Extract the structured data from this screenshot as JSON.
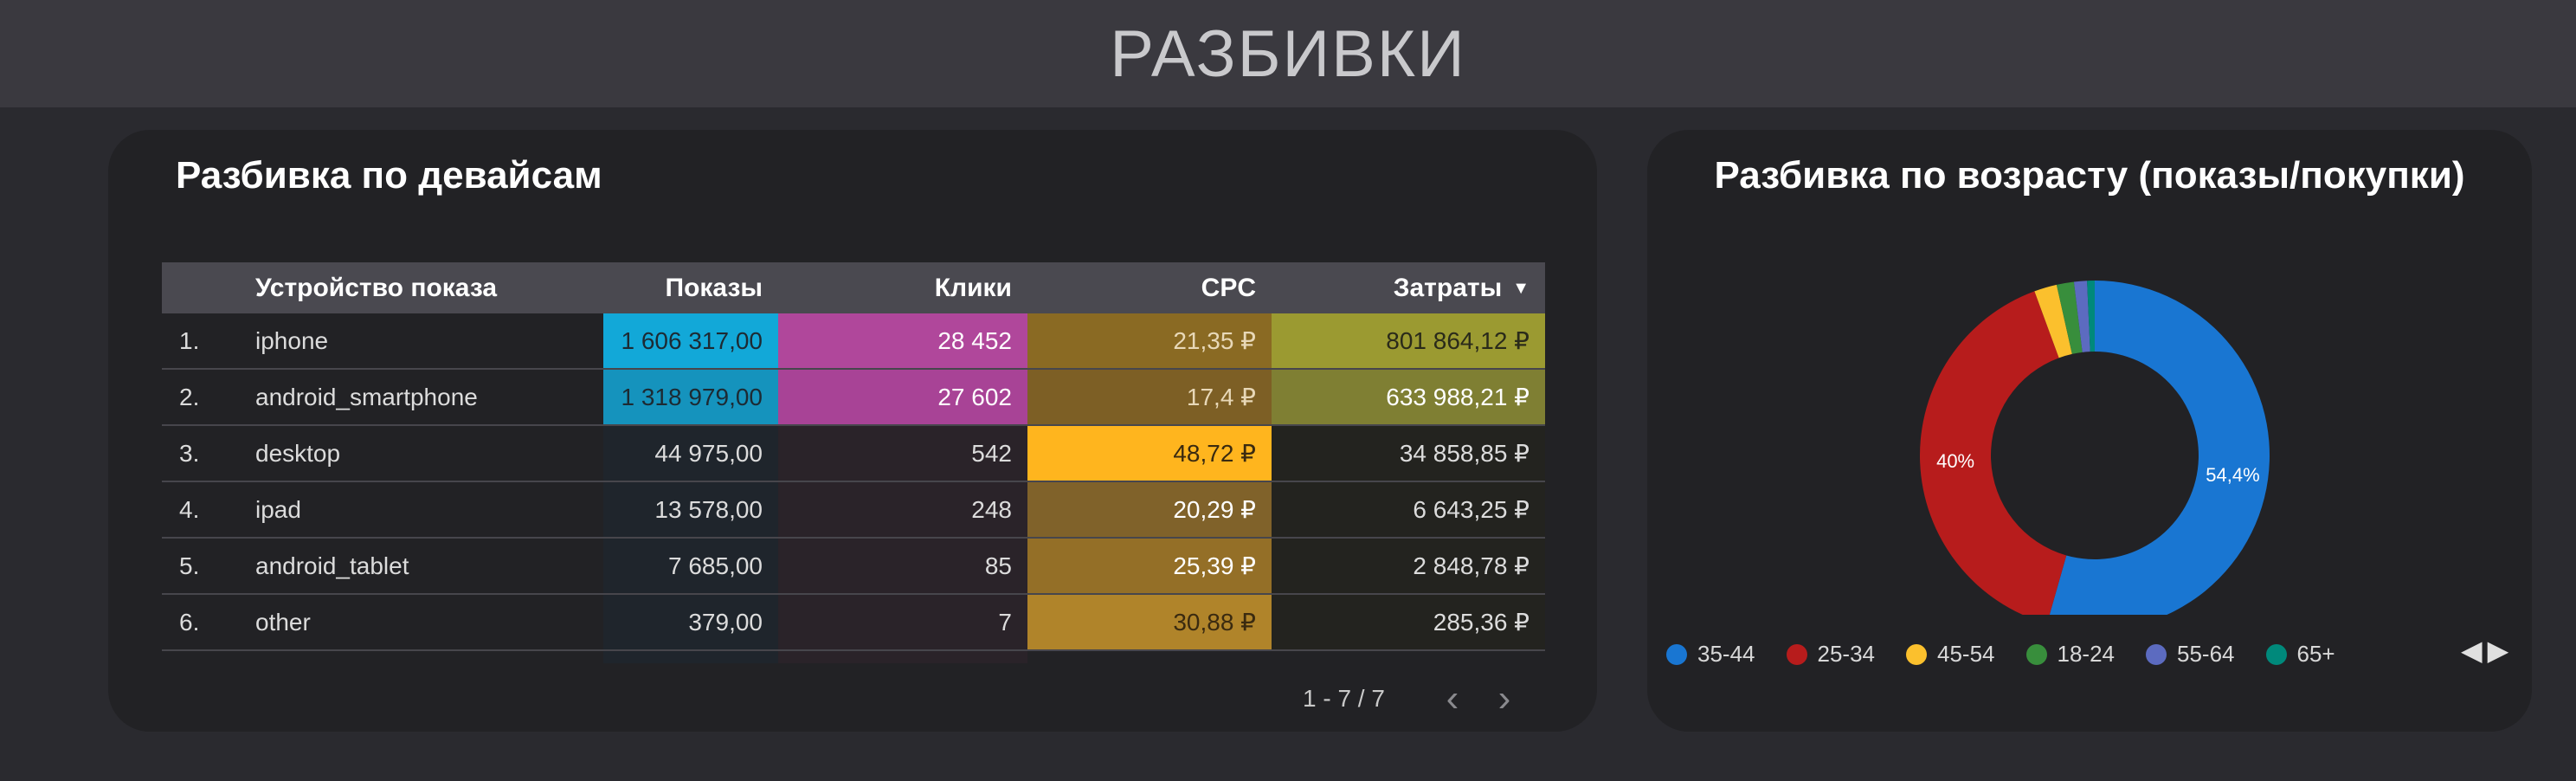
{
  "page": {
    "title": "РАЗБИВКИ"
  },
  "devices": {
    "title": "Разбивка по девайсам",
    "columns": {
      "device": "Устройство показа",
      "impressions": "Показы",
      "clicks": "Клики",
      "cpc": "CPC",
      "cost": "Затраты"
    },
    "rows": [
      {
        "idx": "1.",
        "device": "iphone",
        "impressions": "1 606 317,00",
        "clicks": "28 452",
        "cpc": "21,35 ₽",
        "cost": "801 864,12 ₽"
      },
      {
        "idx": "2.",
        "device": "android_smartphone",
        "impressions": "1 318 979,00",
        "clicks": "27 602",
        "cpc": "17,4 ₽",
        "cost": "633 988,21 ₽"
      },
      {
        "idx": "3.",
        "device": "desktop",
        "impressions": "44 975,00",
        "clicks": "542",
        "cpc": "48,72 ₽",
        "cost": "34 858,85 ₽"
      },
      {
        "idx": "4.",
        "device": "ipad",
        "impressions": "13 578,00",
        "clicks": "248",
        "cpc": "20,29 ₽",
        "cost": "6 643,25 ₽"
      },
      {
        "idx": "5.",
        "device": "android_tablet",
        "impressions": "7 685,00",
        "clicks": "85",
        "cpc": "25,39 ₽",
        "cost": "2 848,78 ₽"
      },
      {
        "idx": "6.",
        "device": "other",
        "impressions": "379,00",
        "clicks": "7",
        "cpc": "30,88 ₽",
        "cost": "285,36 ₽"
      }
    ],
    "cell_colors": [
      {
        "impressions": "#12a8d8",
        "clicks": "#b0479b",
        "cpc": "#8a6a23",
        "cost": "#9b9a31",
        "cost_text": "#2a2a1a",
        "impressions_text": "#1d2a33",
        "clicks_text": "#ffffff",
        "cpc_text": "#e8d8b8"
      },
      {
        "impressions": "#1593bd",
        "clicks": "#a84396",
        "cpc": "#7d5f25",
        "cost": "#7f7f33",
        "cost_text": "#ffffff",
        "impressions_text": "#1d2a33",
        "clicks_text": "#ffffff",
        "cpc_text": "#e8d8b8"
      },
      {
        "impressions": "#1f252c",
        "clicks": "#2a2329",
        "cpc": "#ffb51e",
        "cost": "#23231f",
        "cost_text": "#dcdcdc",
        "impressions_text": "#dcdcdc",
        "clicks_text": "#dcdcdc",
        "cpc_text": "#3a2a10"
      },
      {
        "impressions": "#1f252c",
        "clicks": "#2a2329",
        "cpc": "#80622a",
        "cost": "#23231f",
        "cost_text": "#dcdcdc",
        "impressions_text": "#dcdcdc",
        "clicks_text": "#dcdcdc",
        "cpc_text": "#ffffff"
      },
      {
        "impressions": "#1f252c",
        "clicks": "#2a2329",
        "cpc": "#946f27",
        "cost": "#23231f",
        "cost_text": "#dcdcdc",
        "impressions_text": "#dcdcdc",
        "clicks_text": "#dcdcdc",
        "cpc_text": "#ffffff"
      },
      {
        "impressions": "#1f252c",
        "clicks": "#2a2329",
        "cpc": "#b0842a",
        "cost": "#23231f",
        "cost_text": "#dcdcdc",
        "impressions_text": "#dcdcdc",
        "clicks_text": "#dcdcdc",
        "cpc_text": "#3a2a10"
      }
    ],
    "pager": {
      "text": "1 - 7 / 7",
      "prev_icon": "chevron-left-icon",
      "next_icon": "chevron-right-icon"
    },
    "sort_icon": "caret-down-icon"
  },
  "age": {
    "title": "Разбивка по возрасту (показы/покупки)",
    "chart_data": {
      "type": "pie",
      "title": "Разбивка по возрасту (показы/покупки)",
      "slices": [
        {
          "label": "35-44",
          "value": 54.4,
          "display": "54,4%",
          "color": "#1976d2"
        },
        {
          "label": "25-34",
          "value": 40.0,
          "display": "40%",
          "color": "#b71c1c"
        },
        {
          "label": "45-54",
          "value": 2.1,
          "display": "",
          "color": "#fbc02d"
        },
        {
          "label": "18-24",
          "value": 1.6,
          "display": "",
          "color": "#388e3c"
        },
        {
          "label": "55-64",
          "value": 1.2,
          "display": "",
          "color": "#5c6bc0"
        },
        {
          "label": "65+",
          "value": 0.7,
          "display": "",
          "color": "#00897b"
        }
      ],
      "legend": "bottom"
    },
    "legend_nav": {
      "prev": "◀",
      "next": "▶"
    }
  }
}
